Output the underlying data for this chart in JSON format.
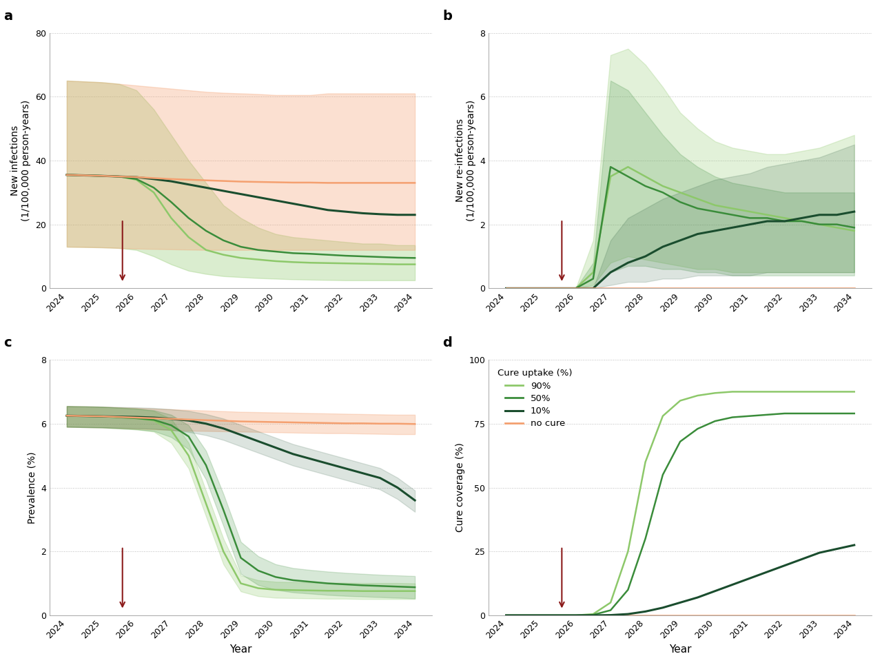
{
  "years": [
    2024,
    2025,
    2025.5,
    2026,
    2026.5,
    2027,
    2027.5,
    2028,
    2028.5,
    2029,
    2029.5,
    2030,
    2030.5,
    2031,
    2031.5,
    2032,
    2032.5,
    2033,
    2033.5,
    2034
  ],
  "arrow_year": 2025.6,
  "panel_a": {
    "title": "a",
    "ylabel": "New infections\n(1/100,000 person-years)",
    "ylim": [
      0,
      80
    ],
    "yticks": [
      0,
      20,
      40,
      60,
      80
    ],
    "no_cure_line": [
      35.5,
      35.2,
      35.0,
      34.8,
      34.5,
      34.2,
      34.0,
      33.8,
      33.6,
      33.4,
      33.3,
      33.2,
      33.1,
      33.1,
      33.0,
      33.0,
      33.0,
      33.0,
      33.0,
      33.0
    ],
    "no_cure_lo": [
      13.0,
      12.8,
      12.6,
      12.4,
      12.3,
      12.2,
      12.1,
      12.0,
      12.0,
      12.0,
      12.0,
      12.0,
      12.0,
      12.0,
      12.0,
      12.0,
      12.0,
      12.0,
      12.0,
      12.0
    ],
    "no_cure_hi": [
      65.0,
      64.5,
      64.0,
      63.5,
      63.0,
      62.5,
      62.0,
      61.5,
      61.2,
      61.0,
      60.8,
      60.5,
      60.5,
      60.5,
      61.0,
      61.0,
      61.0,
      61.0,
      61.0,
      61.0
    ],
    "cure90_line": [
      35.5,
      35.2,
      35.0,
      34.0,
      30.0,
      22.0,
      16.0,
      12.0,
      10.5,
      9.5,
      9.0,
      8.5,
      8.2,
      8.0,
      7.9,
      7.8,
      7.7,
      7.6,
      7.5,
      7.5
    ],
    "cure90_lo": [
      13.0,
      12.8,
      12.6,
      12.0,
      10.0,
      7.5,
      5.5,
      4.5,
      3.8,
      3.5,
      3.2,
      3.0,
      2.8,
      2.7,
      2.6,
      2.5,
      2.5,
      2.5,
      2.5,
      2.5
    ],
    "cure90_hi": [
      65.0,
      64.5,
      64.0,
      62.0,
      56.0,
      48.0,
      40.0,
      33.0,
      26.0,
      22.0,
      19.0,
      17.0,
      16.0,
      15.5,
      15.0,
      14.5,
      14.0,
      14.0,
      13.5,
      13.5
    ],
    "cure50_line": [
      35.5,
      35.2,
      35.0,
      34.2,
      31.5,
      27.0,
      22.0,
      18.0,
      15.0,
      13.0,
      12.0,
      11.5,
      11.0,
      10.8,
      10.5,
      10.2,
      10.0,
      9.8,
      9.6,
      9.5
    ],
    "cure10_line": [
      35.5,
      35.2,
      35.0,
      34.8,
      34.2,
      33.5,
      32.5,
      31.5,
      30.5,
      29.5,
      28.5,
      27.5,
      26.5,
      25.5,
      24.5,
      24.0,
      23.5,
      23.2,
      23.0,
      23.0
    ]
  },
  "panel_b": {
    "title": "b",
    "ylabel": "New re-infections\n(1/100,000 person-years)",
    "ylim": [
      0,
      8
    ],
    "yticks": [
      0,
      2,
      4,
      6,
      8
    ],
    "no_cure_line": [
      0.0,
      0.0,
      0.0,
      0.0,
      0.0,
      0.0,
      0.0,
      0.0,
      0.0,
      0.0,
      0.0,
      0.0,
      0.0,
      0.0,
      0.0,
      0.0,
      0.0,
      0.0,
      0.0,
      0.0
    ],
    "no_cure_lo": [
      0.0,
      0.0,
      0.0,
      0.0,
      0.0,
      0.0,
      0.0,
      0.0,
      0.0,
      0.0,
      0.0,
      0.0,
      0.0,
      0.0,
      0.0,
      0.0,
      0.0,
      0.0,
      0.0,
      0.0
    ],
    "no_cure_hi": [
      0.0,
      0.0,
      0.0,
      0.0,
      0.0,
      0.0,
      0.0,
      0.0,
      0.0,
      0.0,
      0.0,
      0.0,
      0.0,
      0.0,
      0.0,
      0.0,
      0.0,
      0.0,
      0.0,
      0.0
    ],
    "cure90_line": [
      0.0,
      0.0,
      0.0,
      0.0,
      0.5,
      3.5,
      3.8,
      3.5,
      3.2,
      3.0,
      2.8,
      2.6,
      2.5,
      2.4,
      2.3,
      2.2,
      2.1,
      2.0,
      1.9,
      1.8
    ],
    "cure90_lo": [
      0.0,
      0.0,
      0.0,
      0.0,
      0.1,
      0.8,
      1.0,
      0.9,
      0.8,
      0.7,
      0.6,
      0.6,
      0.5,
      0.5,
      0.5,
      0.5,
      0.5,
      0.5,
      0.5,
      0.5
    ],
    "cure90_hi": [
      0.0,
      0.0,
      0.0,
      0.0,
      1.5,
      7.3,
      7.5,
      7.0,
      6.3,
      5.5,
      5.0,
      4.6,
      4.4,
      4.3,
      4.2,
      4.2,
      4.3,
      4.4,
      4.6,
      4.8
    ],
    "cure50_line": [
      0.0,
      0.0,
      0.0,
      0.0,
      0.3,
      3.8,
      3.5,
      3.2,
      3.0,
      2.7,
      2.5,
      2.4,
      2.3,
      2.2,
      2.2,
      2.1,
      2.1,
      2.0,
      2.0,
      1.9
    ],
    "cure50_lo": [
      0.0,
      0.0,
      0.0,
      0.0,
      0.0,
      0.5,
      0.7,
      0.7,
      0.6,
      0.6,
      0.5,
      0.5,
      0.4,
      0.4,
      0.4,
      0.4,
      0.4,
      0.4,
      0.4,
      0.4
    ],
    "cure50_hi": [
      0.0,
      0.0,
      0.0,
      0.0,
      0.8,
      6.5,
      6.2,
      5.5,
      4.8,
      4.2,
      3.8,
      3.5,
      3.3,
      3.2,
      3.1,
      3.0,
      3.0,
      3.0,
      3.0,
      3.0
    ],
    "cure10_line": [
      0.0,
      0.0,
      0.0,
      0.0,
      0.0,
      0.5,
      0.8,
      1.0,
      1.3,
      1.5,
      1.7,
      1.8,
      1.9,
      2.0,
      2.1,
      2.1,
      2.2,
      2.3,
      2.3,
      2.4
    ],
    "cure10_lo": [
      0.0,
      0.0,
      0.0,
      0.0,
      0.0,
      0.1,
      0.2,
      0.2,
      0.3,
      0.3,
      0.4,
      0.4,
      0.4,
      0.4,
      0.5,
      0.5,
      0.5,
      0.5,
      0.5,
      0.5
    ],
    "cure10_hi": [
      0.0,
      0.0,
      0.0,
      0.0,
      0.0,
      1.5,
      2.2,
      2.5,
      2.8,
      3.0,
      3.2,
      3.4,
      3.5,
      3.6,
      3.8,
      3.9,
      4.0,
      4.1,
      4.3,
      4.5
    ]
  },
  "panel_c": {
    "title": "c",
    "ylabel": "Prevalence (%)",
    "ylim": [
      0,
      8
    ],
    "yticks": [
      0,
      2,
      4,
      6,
      8
    ],
    "no_cure_line": [
      6.25,
      6.23,
      6.21,
      6.19,
      6.17,
      6.15,
      6.13,
      6.11,
      6.09,
      6.07,
      6.06,
      6.05,
      6.04,
      6.03,
      6.02,
      6.01,
      6.01,
      6.0,
      6.0,
      5.99
    ],
    "no_cure_lo": [
      5.9,
      5.88,
      5.86,
      5.84,
      5.82,
      5.8,
      5.78,
      5.77,
      5.76,
      5.75,
      5.74,
      5.73,
      5.72,
      5.71,
      5.7,
      5.7,
      5.69,
      5.68,
      5.67,
      5.67
    ],
    "no_cure_hi": [
      6.55,
      6.53,
      6.51,
      6.49,
      6.47,
      6.45,
      6.43,
      6.41,
      6.39,
      6.37,
      6.36,
      6.35,
      6.34,
      6.33,
      6.32,
      6.31,
      6.3,
      6.29,
      6.28,
      6.28
    ],
    "cure90_line": [
      6.25,
      6.23,
      6.2,
      6.17,
      6.1,
      5.8,
      5.0,
      3.5,
      2.0,
      1.0,
      0.85,
      0.8,
      0.79,
      0.78,
      0.77,
      0.77,
      0.76,
      0.76,
      0.76,
      0.76
    ],
    "cure90_lo": [
      5.9,
      5.88,
      5.85,
      5.82,
      5.75,
      5.4,
      4.6,
      3.1,
      1.6,
      0.75,
      0.6,
      0.55,
      0.54,
      0.53,
      0.52,
      0.52,
      0.51,
      0.51,
      0.51,
      0.51
    ],
    "cure90_hi": [
      6.55,
      6.53,
      6.5,
      6.47,
      6.4,
      6.15,
      5.4,
      3.9,
      2.4,
      1.25,
      1.1,
      1.05,
      1.04,
      1.03,
      1.02,
      1.02,
      1.01,
      1.01,
      1.01,
      1.0
    ],
    "cure50_line": [
      6.25,
      6.23,
      6.2,
      6.17,
      6.12,
      5.95,
      5.6,
      4.7,
      3.3,
      1.8,
      1.4,
      1.2,
      1.1,
      1.05,
      1.0,
      0.97,
      0.94,
      0.92,
      0.9,
      0.88
    ],
    "cure50_lo": [
      5.9,
      5.88,
      5.85,
      5.82,
      5.77,
      5.58,
      5.2,
      4.25,
      2.8,
      1.3,
      0.95,
      0.8,
      0.72,
      0.68,
      0.64,
      0.61,
      0.59,
      0.57,
      0.55,
      0.53
    ],
    "cure50_hi": [
      6.55,
      6.53,
      6.5,
      6.47,
      6.42,
      6.28,
      5.95,
      5.15,
      3.8,
      2.3,
      1.85,
      1.6,
      1.48,
      1.42,
      1.37,
      1.33,
      1.3,
      1.27,
      1.25,
      1.23
    ],
    "cure10_line": [
      6.25,
      6.23,
      6.22,
      6.21,
      6.19,
      6.15,
      6.1,
      6.0,
      5.85,
      5.65,
      5.45,
      5.25,
      5.05,
      4.9,
      4.75,
      4.6,
      4.45,
      4.3,
      4.0,
      3.6
    ],
    "cure10_lo": [
      5.9,
      5.88,
      5.87,
      5.86,
      5.84,
      5.8,
      5.74,
      5.64,
      5.49,
      5.29,
      5.09,
      4.89,
      4.69,
      4.54,
      4.39,
      4.24,
      4.09,
      3.94,
      3.64,
      3.24
    ],
    "cure10_hi": [
      6.55,
      6.53,
      6.52,
      6.51,
      6.49,
      6.45,
      6.4,
      6.3,
      6.16,
      5.96,
      5.76,
      5.56,
      5.36,
      5.21,
      5.06,
      4.91,
      4.76,
      4.61,
      4.31,
      3.91
    ]
  },
  "panel_d": {
    "title": "d",
    "ylabel": "Cure coverage (%)",
    "ylim": [
      0,
      100
    ],
    "yticks": [
      0,
      25,
      50,
      75,
      100
    ],
    "no_cure_line": [
      0.0,
      0.0,
      0.0,
      0.0,
      0.0,
      0.0,
      0.0,
      0.0,
      0.0,
      0.0,
      0.0,
      0.0,
      0.0,
      0.0,
      0.0,
      0.0,
      0.0,
      0.0,
      0.0,
      0.0
    ],
    "cure90_line": [
      0.0,
      0.0,
      0.0,
      0.0,
      0.5,
      5.0,
      25.0,
      60.0,
      78.0,
      84.0,
      86.0,
      87.0,
      87.5,
      87.5,
      87.5,
      87.5,
      87.5,
      87.5,
      87.5,
      87.5
    ],
    "cure50_line": [
      0.0,
      0.0,
      0.0,
      0.0,
      0.2,
      2.0,
      10.0,
      30.0,
      55.0,
      68.0,
      73.0,
      76.0,
      77.5,
      78.0,
      78.5,
      79.0,
      79.0,
      79.0,
      79.0,
      79.0
    ],
    "cure10_line": [
      0.0,
      0.0,
      0.0,
      0.0,
      0.0,
      0.1,
      0.5,
      1.5,
      3.0,
      5.0,
      7.0,
      9.5,
      12.0,
      14.5,
      17.0,
      19.5,
      22.0,
      24.5,
      26.0,
      27.5
    ]
  },
  "colors": {
    "cure90": "#8DC86A",
    "cure50": "#3A8C3A",
    "cure10": "#1A4D2E",
    "no_cure": "#F4A070",
    "shade_green": "#8DC86A",
    "shade_no_cure": "#F4A070"
  },
  "arrow_color": "#8B1A1A",
  "background_color": "#FFFFFF",
  "grid_color": "#BBBBBB"
}
